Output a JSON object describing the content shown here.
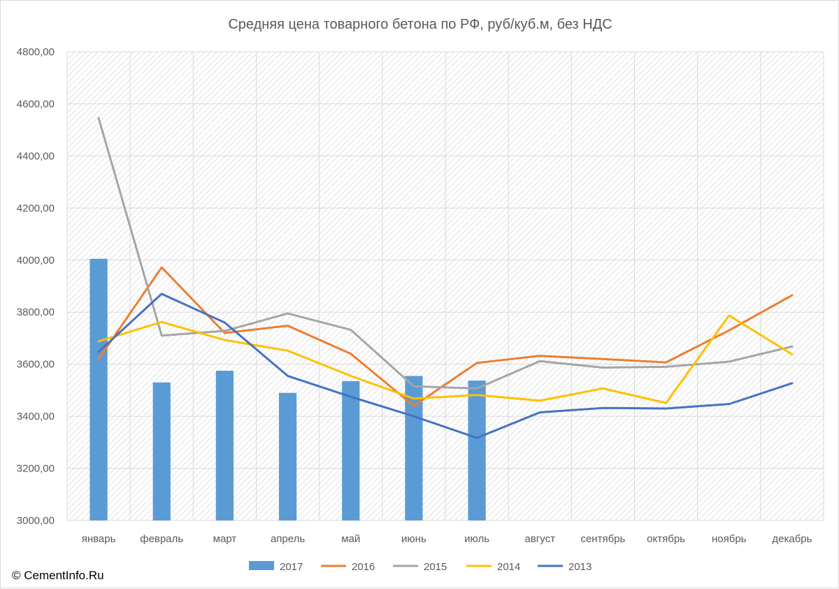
{
  "copyright": "© CementInfo.Ru",
  "chart_data": {
    "type": "bar",
    "title": "Средняя цена товарного бетона по РФ, руб/куб.м, без НДС",
    "xlabel": "",
    "ylabel": "",
    "ylim": [
      3000,
      4800
    ],
    "yticks": [
      "3000,00",
      "3200,00",
      "3400,00",
      "3600,00",
      "3800,00",
      "4000,00",
      "4200,00",
      "4400,00",
      "4600,00",
      "4800,00"
    ],
    "grid": true,
    "legend_position": "bottom",
    "categories": [
      "январь",
      "февраль",
      "март",
      "апрель",
      "май",
      "июнь",
      "июль",
      "август",
      "сентябрь",
      "октябрь",
      "ноябрь",
      "декабрь"
    ],
    "series": [
      {
        "name": "2017",
        "type": "bar",
        "color": "#5b9bd5",
        "values": [
          4005,
          3530,
          3575,
          3490,
          3535,
          3555,
          3537,
          null,
          null,
          null,
          null,
          null
        ]
      },
      {
        "name": "2016",
        "type": "line",
        "color": "#ed7d31",
        "values": [
          3620,
          3972,
          3720,
          3748,
          3640,
          3440,
          3605,
          3632,
          3620,
          3607,
          3730,
          3865
        ]
      },
      {
        "name": "2015",
        "type": "line",
        "color": "#a5a5a5",
        "values": [
          4545,
          3710,
          3728,
          3795,
          3732,
          3515,
          3507,
          3612,
          3587,
          3590,
          3610,
          3668
        ]
      },
      {
        "name": "2014",
        "type": "line",
        "color": "#ffc000",
        "values": [
          3688,
          3762,
          3693,
          3652,
          3555,
          3468,
          3482,
          3460,
          3507,
          3451,
          3787,
          3638
        ]
      },
      {
        "name": "2013",
        "type": "line",
        "color": "#4472c4",
        "values": [
          3648,
          3870,
          3760,
          3555,
          3475,
          3400,
          3317,
          3415,
          3432,
          3430,
          3447,
          3527
        ]
      }
    ]
  }
}
